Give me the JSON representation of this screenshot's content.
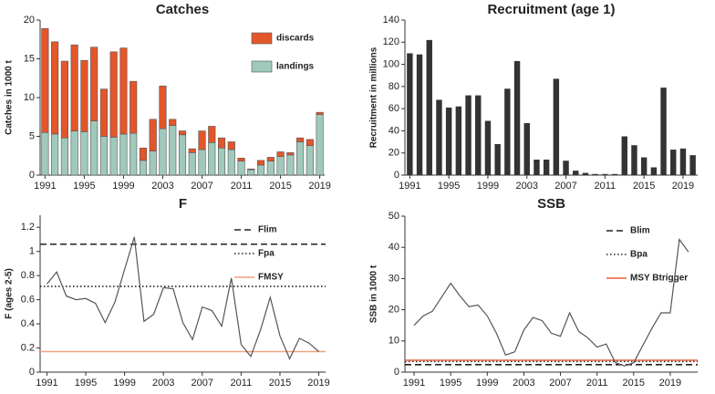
{
  "chart_data": [
    {
      "type": "bar",
      "stacked": true,
      "title": "Catches",
      "ylabel": "Catches in 1000 t",
      "categories": [
        "1991",
        null,
        null,
        null,
        "1995",
        null,
        null,
        null,
        "1999",
        null,
        null,
        null,
        "2003",
        null,
        null,
        null,
        "2007",
        null,
        null,
        null,
        "2011",
        null,
        null,
        null,
        "2015",
        null,
        null,
        null,
        "2019"
      ],
      "series": [
        {
          "name": "landings",
          "color": "#9fc9bb",
          "values": [
            5.5,
            5.3,
            4.8,
            5.7,
            5.6,
            7.0,
            5.0,
            4.9,
            5.3,
            5.4,
            1.9,
            3.1,
            6.0,
            6.4,
            5.2,
            2.9,
            3.3,
            4.2,
            3.5,
            3.3,
            1.8,
            0.7,
            1.3,
            1.8,
            2.4,
            2.6,
            4.3,
            3.8,
            7.8
          ]
        },
        {
          "name": "discards",
          "color": "#e3562a",
          "values": [
            13.4,
            11.9,
            9.9,
            11.1,
            9.2,
            9.5,
            6.1,
            11.0,
            11.1,
            6.7,
            1.6,
            4.1,
            5.5,
            0.8,
            0.5,
            0.5,
            2.4,
            2.1,
            1.3,
            1.0,
            0.4,
            0.1,
            0.6,
            0.5,
            0.6,
            0.3,
            0.5,
            0.8,
            0.3
          ]
        }
      ],
      "ylim": [
        0,
        20
      ],
      "yticks": [
        0,
        5,
        10,
        15,
        20
      ]
    },
    {
      "type": "bar",
      "title": "Recruitment (age 1)",
      "ylabel": "Recruitment in millions",
      "categories": [
        "1991",
        null,
        null,
        null,
        "1995",
        null,
        null,
        null,
        "1999",
        null,
        null,
        null,
        "2003",
        null,
        null,
        null,
        "2007",
        null,
        null,
        null,
        "2011",
        null,
        null,
        null,
        "2015",
        null,
        null,
        null,
        "2019",
        null
      ],
      "values": [
        110,
        109,
        122,
        68,
        61,
        62,
        72,
        72,
        49,
        28,
        78,
        103,
        47,
        14,
        14,
        87,
        13,
        4,
        2,
        1,
        1,
        1,
        35,
        27,
        16,
        7,
        79,
        23,
        24,
        18
      ],
      "color": "#333333",
      "ylim": [
        0,
        140
      ],
      "yticks": [
        0,
        20,
        40,
        60,
        80,
        100,
        120,
        140
      ]
    },
    {
      "type": "line",
      "title": "F",
      "ylabel": "F (ages 2-5)",
      "x": [
        1991,
        1992,
        1993,
        1994,
        1995,
        1996,
        1997,
        1998,
        1999,
        2000,
        2001,
        2002,
        2003,
        2004,
        2005,
        2006,
        2007,
        2008,
        2009,
        2010,
        2011,
        2012,
        2013,
        2014,
        2015,
        2016,
        2017,
        2018,
        2019
      ],
      "series": [
        {
          "color": "#555555",
          "values": [
            0.73,
            0.83,
            0.63,
            0.6,
            0.61,
            0.57,
            0.41,
            0.58,
            0.85,
            1.12,
            0.42,
            0.48,
            0.7,
            0.69,
            0.41,
            0.27,
            0.54,
            0.51,
            0.38,
            0.78,
            0.23,
            0.13,
            0.35,
            0.62,
            0.3,
            0.11,
            0.28,
            0.24,
            0.17
          ]
        }
      ],
      "reference_lines": [
        {
          "name": "Flim",
          "value": 1.06,
          "style": "dashed",
          "color": "#222222"
        },
        {
          "name": "Fpa",
          "value": 0.71,
          "style": "dotted",
          "color": "#222222"
        },
        {
          "name": "FMSY",
          "value": 0.17,
          "style": "solid",
          "color": "#f0a080"
        }
      ],
      "xlim": [
        1990.3,
        2019.7
      ],
      "xticks": [
        1991,
        1995,
        1999,
        2003,
        2007,
        2011,
        2015,
        2019
      ],
      "ylim": [
        0,
        1.3
      ],
      "yticks": [
        0,
        0.2,
        0.4,
        0.6,
        0.8,
        1,
        1.2
      ]
    },
    {
      "type": "line",
      "title": "SSB",
      "ylabel": "SSB in 1000 t",
      "x": [
        1991,
        1992,
        1993,
        1994,
        1995,
        1996,
        1997,
        1998,
        1999,
        2000,
        2001,
        2002,
        2003,
        2004,
        2005,
        2006,
        2007,
        2008,
        2009,
        2010,
        2011,
        2012,
        2013,
        2014,
        2015,
        2016,
        2017,
        2018,
        2019,
        2020,
        2021
      ],
      "series": [
        {
          "color": "#555555",
          "values": [
            15,
            18,
            19.5,
            24,
            28.5,
            24.5,
            21,
            21.5,
            18,
            12.5,
            5.5,
            6.5,
            13.5,
            17.5,
            16.5,
            12.5,
            11.5,
            19,
            13,
            11,
            8,
            9,
            3,
            2,
            3,
            8.5,
            14,
            19,
            19,
            42.5,
            38.5
          ]
        }
      ],
      "reference_lines": [
        {
          "name": "Blim",
          "value": 2.4,
          "style": "dashed",
          "color": "#222222"
        },
        {
          "name": "Bpa",
          "value": 3.4,
          "style": "dotted",
          "color": "#222222"
        },
        {
          "name": "MSY Btrigger",
          "value": 3.8,
          "style": "solid",
          "color": "#e8603a"
        }
      ],
      "xlim": [
        1990,
        2022
      ],
      "xticks": [
        1991,
        1995,
        1999,
        2003,
        2007,
        2011,
        2015,
        2019
      ],
      "ylim": [
        0,
        50
      ],
      "yticks": [
        0,
        10,
        20,
        30,
        40,
        50
      ]
    }
  ]
}
